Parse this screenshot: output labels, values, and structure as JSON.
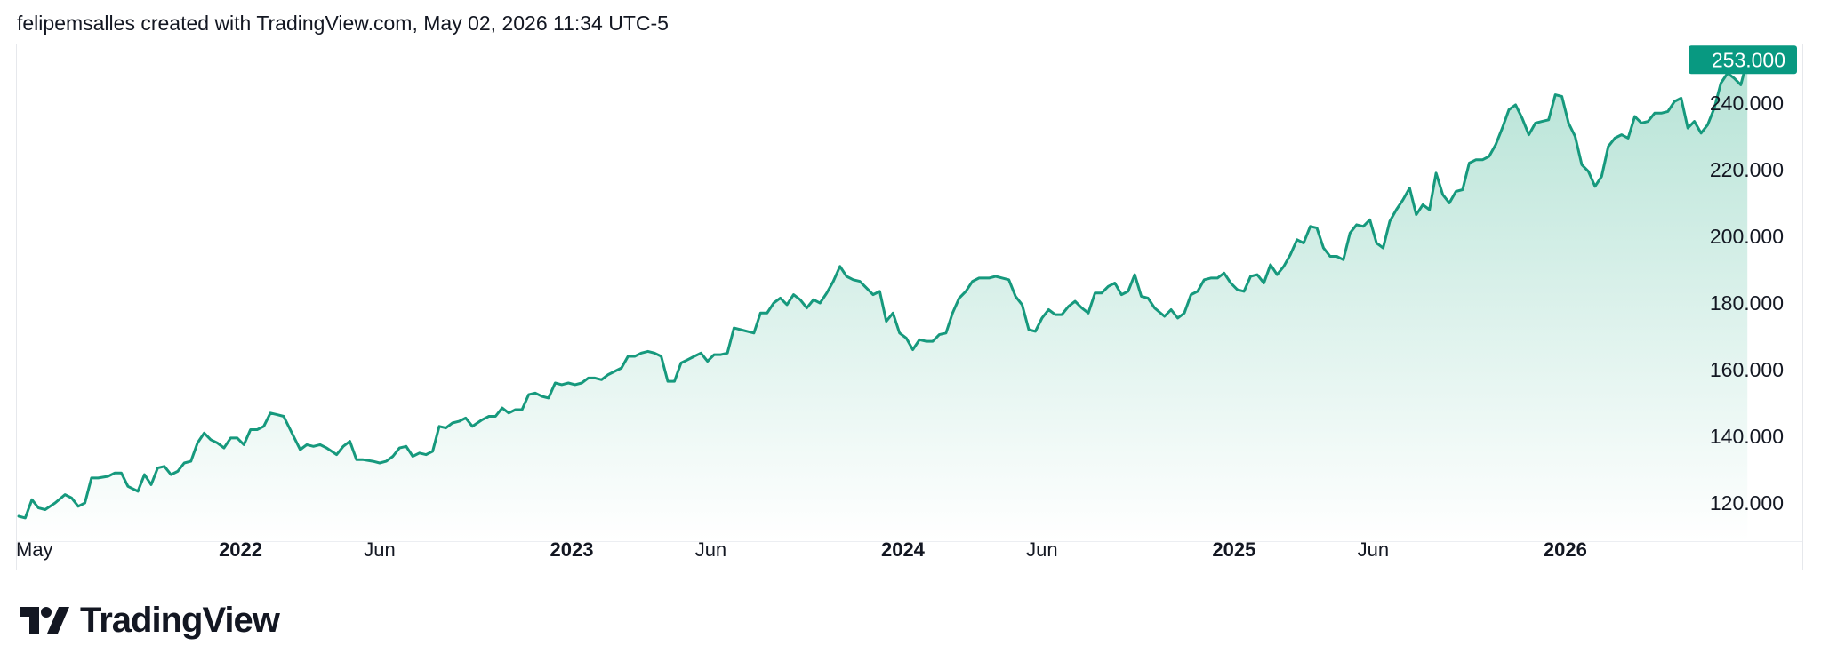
{
  "header": {
    "attribution": "felipemsalles created with TradingView.com, May 02, 2026 11:34 UTC-5"
  },
  "brand": {
    "name": "TradingView",
    "logo_icon": "tradingview-logo-icon"
  },
  "colors": {
    "line": "#16997d",
    "area_top": "#b6e3d6",
    "area_bottom": "#ffffff",
    "price_badge": "#089981",
    "text": "#131722",
    "border": "#e6e8ec"
  },
  "chart_data": {
    "type": "area",
    "title": "",
    "xlabel": "",
    "ylabel": "",
    "y_range": [
      112,
      256
    ],
    "x_range": [
      2021.33,
      2026.34
    ],
    "y_ticks": [
      120,
      140,
      160,
      180,
      200,
      220,
      240
    ],
    "y_tick_labels": [
      "120.000",
      "140.000",
      "160.000",
      "180.000",
      "200.000",
      "220.000",
      "240.000"
    ],
    "x_ticks": [
      {
        "label": "May",
        "x": 2021.33,
        "bold": false
      },
      {
        "label": "2022",
        "x": 2022.0,
        "bold": true
      },
      {
        "label": "Jun",
        "x": 2022.42,
        "bold": false
      },
      {
        "label": "2023",
        "x": 2023.0,
        "bold": true
      },
      {
        "label": "Jun",
        "x": 2023.42,
        "bold": false
      },
      {
        "label": "2024",
        "x": 2024.0,
        "bold": true
      },
      {
        "label": "Jun",
        "x": 2024.42,
        "bold": false
      },
      {
        "label": "2025",
        "x": 2025.0,
        "bold": true
      },
      {
        "label": "Jun",
        "x": 2025.42,
        "bold": false
      },
      {
        "label": "2026",
        "x": 2026.0,
        "bold": true
      }
    ],
    "last_price": 253,
    "last_price_label": "253.000",
    "grid": false,
    "legend": "none",
    "series": [
      {
        "points": [
          [
            2021.33,
            116
          ],
          [
            2021.35,
            115.5
          ],
          [
            2021.37,
            121
          ],
          [
            2021.39,
            118.5
          ],
          [
            2021.41,
            118
          ],
          [
            2021.44,
            120
          ],
          [
            2021.47,
            122.5
          ],
          [
            2021.49,
            121.5
          ],
          [
            2021.51,
            119
          ],
          [
            2021.53,
            120
          ],
          [
            2021.55,
            127.5
          ],
          [
            2021.57,
            127.5
          ],
          [
            2021.6,
            128
          ],
          [
            2021.62,
            129
          ],
          [
            2021.64,
            129
          ],
          [
            2021.66,
            125
          ],
          [
            2021.69,
            123.5
          ],
          [
            2021.71,
            128.5
          ],
          [
            2021.73,
            125.5
          ],
          [
            2021.75,
            130.5
          ],
          [
            2021.77,
            131
          ],
          [
            2021.79,
            128.5
          ],
          [
            2021.81,
            129.5
          ],
          [
            2021.83,
            132
          ],
          [
            2021.85,
            132.5
          ],
          [
            2021.87,
            138
          ],
          [
            2021.89,
            141
          ],
          [
            2021.91,
            139
          ],
          [
            2021.93,
            138
          ],
          [
            2021.95,
            136.5
          ],
          [
            2021.97,
            139.5
          ],
          [
            2021.99,
            139.5
          ],
          [
            2022.01,
            137.5
          ],
          [
            2022.03,
            142
          ],
          [
            2022.05,
            142
          ],
          [
            2022.07,
            143
          ],
          [
            2022.09,
            147
          ],
          [
            2022.11,
            146.5
          ],
          [
            2022.13,
            146
          ],
          [
            2022.15,
            142
          ],
          [
            2022.18,
            136
          ],
          [
            2022.2,
            137.5
          ],
          [
            2022.22,
            137
          ],
          [
            2022.24,
            137.5
          ],
          [
            2022.26,
            136.5
          ],
          [
            2022.29,
            134.5
          ],
          [
            2022.31,
            137
          ],
          [
            2022.33,
            138.5
          ],
          [
            2022.35,
            133
          ],
          [
            2022.37,
            133
          ],
          [
            2022.4,
            132.5
          ],
          [
            2022.42,
            132
          ],
          [
            2022.44,
            132.5
          ],
          [
            2022.46,
            134
          ],
          [
            2022.48,
            136.5
          ],
          [
            2022.5,
            137
          ],
          [
            2022.52,
            134
          ],
          [
            2022.54,
            135
          ],
          [
            2022.56,
            134.5
          ],
          [
            2022.58,
            135.5
          ],
          [
            2022.6,
            143
          ],
          [
            2022.62,
            142.5
          ],
          [
            2022.64,
            144
          ],
          [
            2022.66,
            144.5
          ],
          [
            2022.68,
            145.5
          ],
          [
            2022.7,
            143
          ],
          [
            2022.73,
            145
          ],
          [
            2022.75,
            146
          ],
          [
            2022.77,
            146
          ],
          [
            2022.79,
            148.5
          ],
          [
            2022.81,
            147
          ],
          [
            2022.83,
            148
          ],
          [
            2022.85,
            148
          ],
          [
            2022.87,
            152.5
          ],
          [
            2022.89,
            153
          ],
          [
            2022.91,
            152
          ],
          [
            2022.93,
            151.5
          ],
          [
            2022.95,
            156
          ],
          [
            2022.97,
            155.5
          ],
          [
            2022.99,
            156
          ],
          [
            2023.01,
            155.5
          ],
          [
            2023.03,
            156
          ],
          [
            2023.05,
            157.5
          ],
          [
            2023.07,
            157.5
          ],
          [
            2023.09,
            157
          ],
          [
            2023.11,
            158.5
          ],
          [
            2023.13,
            159.5
          ],
          [
            2023.15,
            160.5
          ],
          [
            2023.17,
            164
          ],
          [
            2023.19,
            164
          ],
          [
            2023.21,
            165
          ],
          [
            2023.23,
            165.5
          ],
          [
            2023.25,
            165
          ],
          [
            2023.27,
            164
          ],
          [
            2023.29,
            156.5
          ],
          [
            2023.31,
            156.5
          ],
          [
            2023.33,
            162
          ],
          [
            2023.35,
            163
          ],
          [
            2023.37,
            164
          ],
          [
            2023.39,
            165
          ],
          [
            2023.41,
            162.5
          ],
          [
            2023.43,
            164.5
          ],
          [
            2023.45,
            164.5
          ],
          [
            2023.47,
            165
          ],
          [
            2023.49,
            172.5
          ],
          [
            2023.51,
            172
          ],
          [
            2023.53,
            171.5
          ],
          [
            2023.55,
            171
          ],
          [
            2023.57,
            177
          ],
          [
            2023.59,
            177
          ],
          [
            2023.61,
            180
          ],
          [
            2023.63,
            181.5
          ],
          [
            2023.65,
            179.5
          ],
          [
            2023.67,
            182.5
          ],
          [
            2023.69,
            181
          ],
          [
            2023.71,
            178.5
          ],
          [
            2023.73,
            181
          ],
          [
            2023.75,
            180
          ],
          [
            2023.77,
            183
          ],
          [
            2023.79,
            186.5
          ],
          [
            2023.81,
            191
          ],
          [
            2023.83,
            188
          ],
          [
            2023.85,
            187
          ],
          [
            2023.87,
            186.5
          ],
          [
            2023.89,
            184.5
          ],
          [
            2023.91,
            182.5
          ],
          [
            2023.93,
            183.5
          ],
          [
            2023.95,
            174.5
          ],
          [
            2023.97,
            177
          ],
          [
            2023.99,
            171
          ],
          [
            2024.01,
            169.5
          ],
          [
            2024.03,
            166
          ],
          [
            2024.05,
            169
          ],
          [
            2024.07,
            168.5
          ],
          [
            2024.09,
            168.5
          ],
          [
            2024.11,
            170.5
          ],
          [
            2024.13,
            171
          ],
          [
            2024.15,
            177
          ],
          [
            2024.17,
            181.5
          ],
          [
            2024.19,
            183.5
          ],
          [
            2024.21,
            186.5
          ],
          [
            2024.23,
            187.5
          ],
          [
            2024.26,
            187.5
          ],
          [
            2024.28,
            188
          ],
          [
            2024.3,
            187.5
          ],
          [
            2024.32,
            187
          ],
          [
            2024.34,
            182
          ],
          [
            2024.36,
            179.5
          ],
          [
            2024.38,
            172
          ],
          [
            2024.4,
            171.5
          ],
          [
            2024.42,
            175.5
          ],
          [
            2024.44,
            178
          ],
          [
            2024.46,
            176.5
          ],
          [
            2024.48,
            176.5
          ],
          [
            2024.5,
            179
          ],
          [
            2024.52,
            180.5
          ],
          [
            2024.54,
            178.5
          ],
          [
            2024.56,
            177
          ],
          [
            2024.58,
            183
          ],
          [
            2024.6,
            183
          ],
          [
            2024.62,
            185
          ],
          [
            2024.64,
            186
          ],
          [
            2024.66,
            182.5
          ],
          [
            2024.68,
            183.5
          ],
          [
            2024.7,
            188.5
          ],
          [
            2024.72,
            182
          ],
          [
            2024.74,
            181.5
          ],
          [
            2024.76,
            178.5
          ],
          [
            2024.79,
            176
          ],
          [
            2024.81,
            178
          ],
          [
            2024.83,
            175.5
          ],
          [
            2024.85,
            177
          ],
          [
            2024.87,
            182.5
          ],
          [
            2024.89,
            183.5
          ],
          [
            2024.91,
            187
          ],
          [
            2024.93,
            187.5
          ],
          [
            2024.95,
            187.5
          ],
          [
            2024.97,
            189
          ],
          [
            2024.99,
            186
          ],
          [
            2025.01,
            184
          ],
          [
            2025.03,
            183.5
          ],
          [
            2025.05,
            188
          ],
          [
            2025.07,
            188.5
          ],
          [
            2025.09,
            186
          ],
          [
            2025.11,
            191.5
          ],
          [
            2025.13,
            188.5
          ],
          [
            2025.15,
            191
          ],
          [
            2025.17,
            194.5
          ],
          [
            2025.19,
            199
          ],
          [
            2025.21,
            198
          ],
          [
            2025.23,
            203
          ],
          [
            2025.25,
            202.5
          ],
          [
            2025.27,
            196.5
          ],
          [
            2025.29,
            194
          ],
          [
            2025.31,
            194
          ],
          [
            2025.33,
            193
          ],
          [
            2025.35,
            201
          ],
          [
            2025.37,
            203.5
          ],
          [
            2025.39,
            203
          ],
          [
            2025.41,
            205
          ],
          [
            2025.43,
            198
          ],
          [
            2025.45,
            196.5
          ],
          [
            2025.47,
            204.5
          ],
          [
            2025.49,
            208
          ],
          [
            2025.51,
            211
          ],
          [
            2025.53,
            214.5
          ],
          [
            2025.55,
            206.5
          ],
          [
            2025.57,
            209.5
          ],
          [
            2025.59,
            208
          ],
          [
            2025.61,
            219
          ],
          [
            2025.63,
            212.5
          ],
          [
            2025.65,
            210
          ],
          [
            2025.67,
            213.5
          ],
          [
            2025.69,
            214
          ],
          [
            2025.71,
            222
          ],
          [
            2025.73,
            223
          ],
          [
            2025.75,
            223
          ],
          [
            2025.77,
            224
          ],
          [
            2025.79,
            227.5
          ],
          [
            2025.81,
            232.5
          ],
          [
            2025.83,
            238
          ],
          [
            2025.85,
            239.5
          ],
          [
            2025.87,
            235.5
          ],
          [
            2025.89,
            230.5
          ],
          [
            2025.91,
            234
          ],
          [
            2025.93,
            234.5
          ],
          [
            2025.95,
            235
          ],
          [
            2025.97,
            242.5
          ],
          [
            2025.99,
            242
          ],
          [
            2026.01,
            234
          ],
          [
            2026.03,
            230
          ],
          [
            2026.05,
            221.5
          ],
          [
            2026.07,
            219.5
          ],
          [
            2026.09,
            215
          ],
          [
            2026.11,
            218
          ],
          [
            2026.13,
            227
          ],
          [
            2026.15,
            229.5
          ],
          [
            2026.17,
            230.5
          ],
          [
            2026.19,
            229.5
          ],
          [
            2026.21,
            236
          ],
          [
            2026.23,
            234
          ],
          [
            2026.25,
            234.5
          ],
          [
            2026.27,
            237
          ],
          [
            2026.29,
            237
          ],
          [
            2026.31,
            237.5
          ],
          [
            2026.33,
            240.5
          ],
          [
            2026.35,
            241.5
          ],
          [
            2026.37,
            232.5
          ],
          [
            2026.39,
            234.5
          ],
          [
            2026.41,
            231
          ],
          [
            2026.43,
            233.5
          ],
          [
            2026.45,
            238.5
          ],
          [
            2026.47,
            246
          ],
          [
            2026.49,
            249
          ],
          [
            2026.51,
            247.5
          ],
          [
            2026.53,
            245.5
          ],
          [
            2026.55,
            253
          ]
        ]
      }
    ]
  }
}
